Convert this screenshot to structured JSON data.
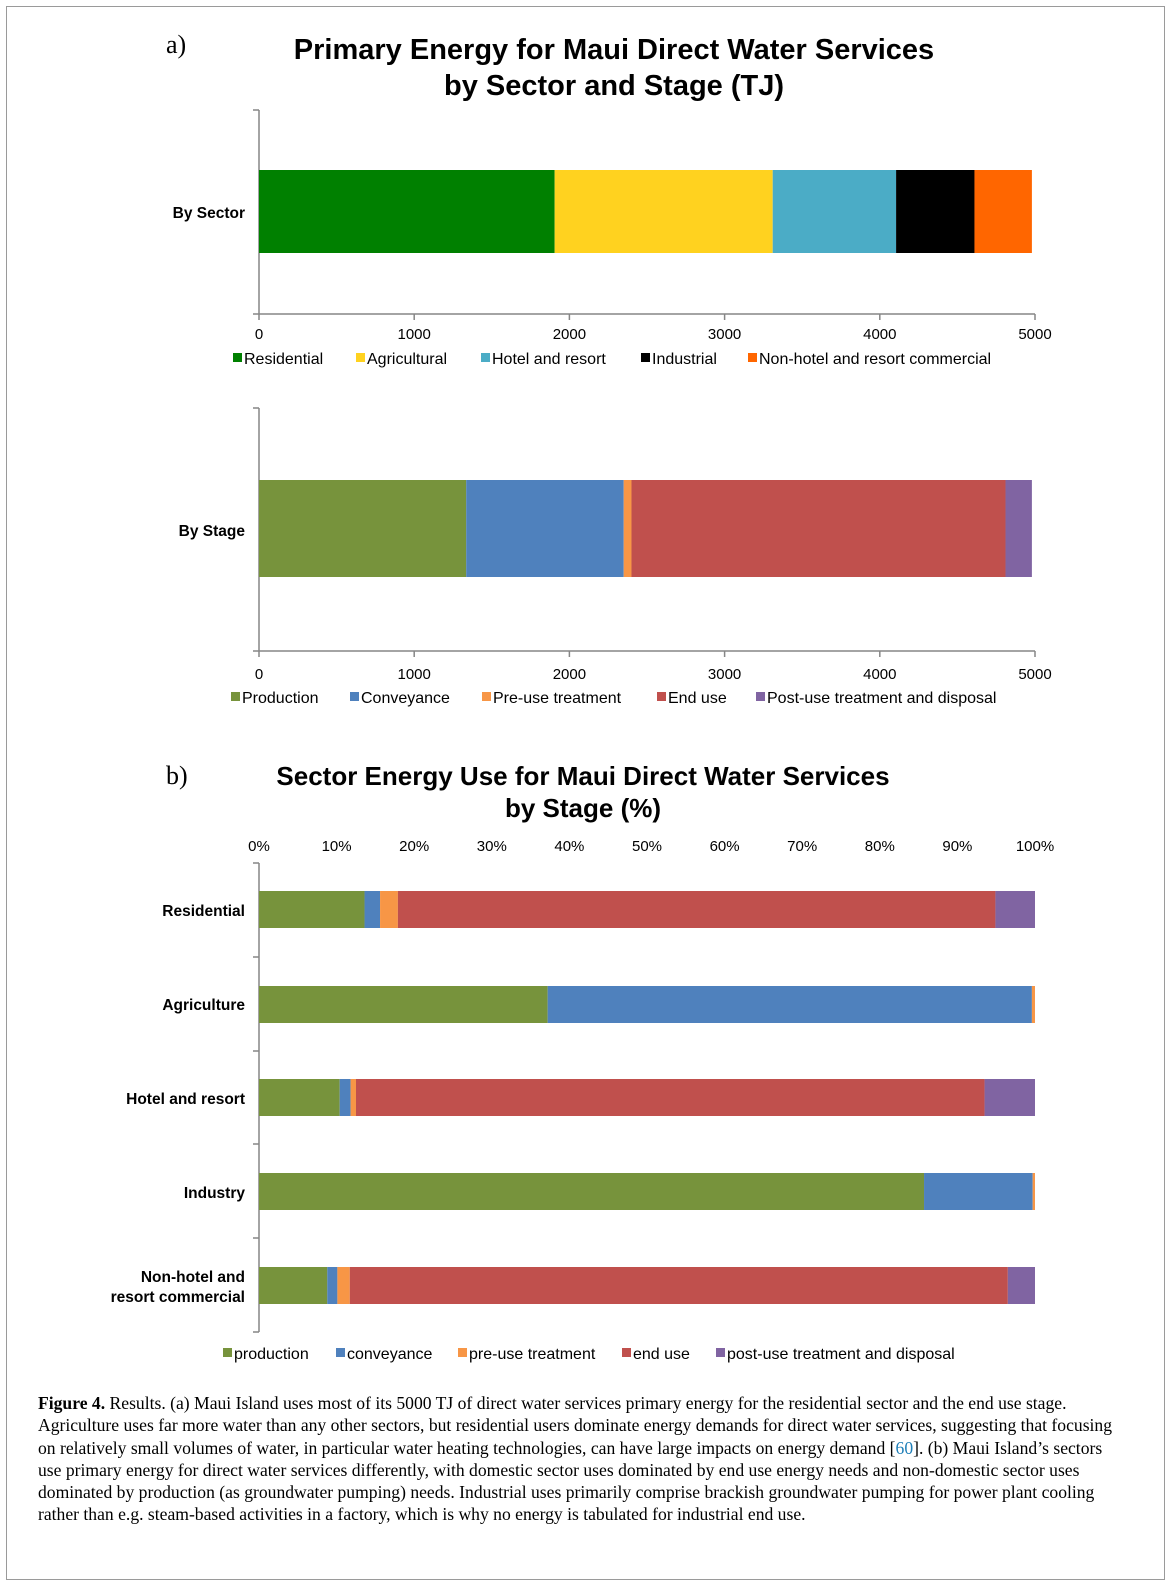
{
  "charts": [
    {
      "panel": "a)",
      "title_lines": [
        "Primary Energy for Maui Direct Water Services",
        "by Sector and Stage (TJ)"
      ]
    },
    {
      "panel": "b)",
      "title_lines": [
        "Sector Energy Use for Maui Direct Water Services",
        "by Stage (%)"
      ]
    }
  ],
  "chart_data": [
    {
      "type": "bar",
      "orientation": "horizontal",
      "stacked": true,
      "categories": [
        "By Sector"
      ],
      "xlim": [
        0,
        5000
      ],
      "x_ticks": [
        "0",
        "1000",
        "2000",
        "3000",
        "4000",
        "5000"
      ],
      "legend_position": "bottom",
      "series": [
        {
          "name": "Residential",
          "color": "#008000",
          "values": [
            1905
          ]
        },
        {
          "name": "Agricultural",
          "color": "#ffd21f",
          "values": [
            1405
          ]
        },
        {
          "name": "Hotel and resort",
          "color": "#4bacc6",
          "values": [
            795
          ]
        },
        {
          "name": "Industrial",
          "color": "#000000",
          "values": [
            505
          ]
        },
        {
          "name": "Non-hotel and resort commercial",
          "color": "#ff6600",
          "values": [
            370
          ]
        }
      ]
    },
    {
      "type": "bar",
      "orientation": "horizontal",
      "stacked": true,
      "categories": [
        "By Stage"
      ],
      "xlim": [
        0,
        5000
      ],
      "x_ticks": [
        "0",
        "1000",
        "2000",
        "3000",
        "4000",
        "5000"
      ],
      "legend_position": "bottom",
      "series": [
        {
          "name": "Production",
          "color": "#77933c",
          "values": [
            1335
          ]
        },
        {
          "name": "Conveyance",
          "color": "#4f81bd",
          "values": [
            1015
          ]
        },
        {
          "name": "Pre-use treatment",
          "color": "#f79646",
          "values": [
            50
          ]
        },
        {
          "name": "End use",
          "color": "#c0504d",
          "values": [
            2410
          ]
        },
        {
          "name": "Post-use treatment and disposal",
          "color": "#8064a2",
          "values": [
            170
          ]
        }
      ]
    },
    {
      "type": "bar",
      "orientation": "horizontal",
      "stacked": true,
      "percent": true,
      "categories": [
        "Residential",
        "Agriculture",
        "Hotel and resort",
        "Industry",
        "Non-hotel and resort commercial"
      ],
      "category_lines": [
        [
          "Residential"
        ],
        [
          "Agriculture"
        ],
        [
          "Hotel and resort"
        ],
        [
          "Industry"
        ],
        [
          "Non-hotel and",
          "resort commercial"
        ]
      ],
      "xlim": [
        0,
        100
      ],
      "x_ticks": [
        "0%",
        "10%",
        "20%",
        "30%",
        "40%",
        "50%",
        "60%",
        "70%",
        "80%",
        "90%",
        "100%"
      ],
      "x_axis_position": "top",
      "legend_position": "bottom",
      "series": [
        {
          "name": "production",
          "color": "#77933c",
          "values": [
            13.6,
            37.2,
            10.4,
            85.7,
            8.8
          ]
        },
        {
          "name": "conveyance",
          "color": "#4f81bd",
          "values": [
            2.0,
            62.4,
            1.4,
            14.0,
            1.3
          ]
        },
        {
          "name": "pre-use treatment",
          "color": "#f79646",
          "values": [
            2.3,
            0.4,
            0.7,
            0.3,
            1.6
          ]
        },
        {
          "name": "end use",
          "color": "#c0504d",
          "values": [
            77.0,
            0.0,
            81.0,
            0.0,
            84.8
          ]
        },
        {
          "name": "post-use treatment and disposal",
          "color": "#8064a2",
          "values": [
            5.1,
            0.0,
            6.5,
            0.0,
            3.5
          ]
        }
      ]
    }
  ],
  "caption": {
    "label": "Figure 4.",
    "text_before_ref": " Results. (a) Maui Island uses most of its 5000 TJ of direct water services primary energy for the residential sector and the end use stage. Agriculture uses far more water than any other sectors, but residential users dominate energy demands for direct water services, suggesting that focusing on relatively small volumes of water, in particular water heating technologies, can have large impacts on energy demand [",
    "ref": "60",
    "text_after_ref": "]. (b) Maui Island’s sectors use primary energy for direct water services differently, with domestic sector uses dominated by end use energy needs and non-domestic sector uses dominated by production (as groundwater pumping) needs. Industrial uses primarily comprise brackish groundwater pumping for power plant cooling rather than e.g. steam-based activities in a factory, which is why no energy is tabulated for industrial end use."
  }
}
